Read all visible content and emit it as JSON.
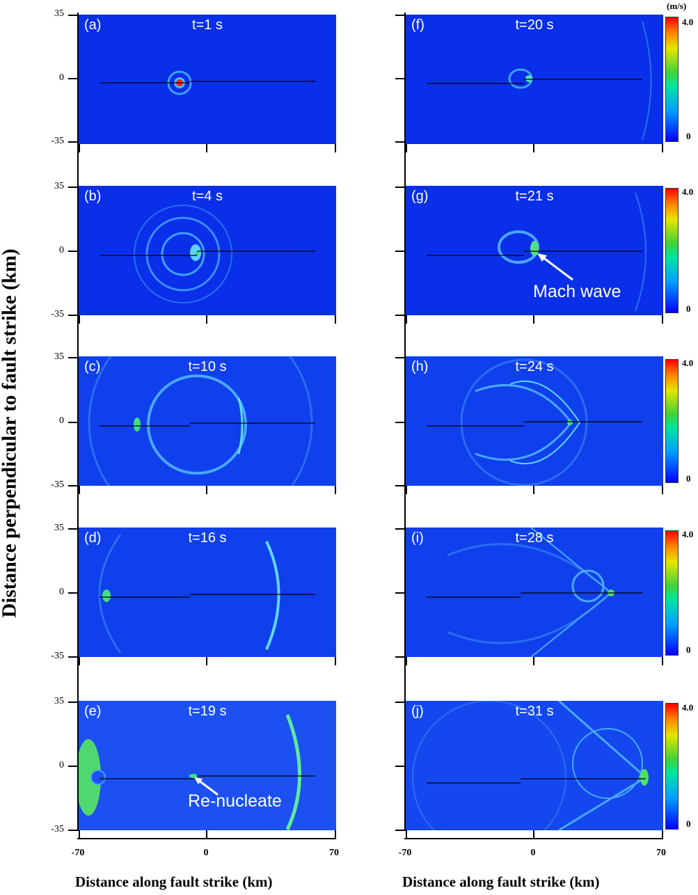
{
  "figure": {
    "y_axis_title": "Distance perpendicular to fault strike (km)",
    "x_axis_title": "Distance along fault strike (km)",
    "y_ticks": [
      "35",
      "0",
      "-35"
    ],
    "x_ticks": [
      "-70",
      "0",
      "70"
    ],
    "colorbar": {
      "unit": "(m/s)",
      "max": "4.0",
      "min": "0"
    },
    "colors": {
      "background": "#0a2fe8",
      "wave": "#3fa0ff",
      "hot": "#ff2020",
      "mid": "#30e060"
    }
  },
  "panels": [
    {
      "label": "(a)",
      "time": "t=1 s"
    },
    {
      "label": "(b)",
      "time": "t=4 s"
    },
    {
      "label": "(c)",
      "time": "t=10 s"
    },
    {
      "label": "(d)",
      "time": "t=16 s"
    },
    {
      "label": "(e)",
      "time": "t=19 s"
    },
    {
      "label": "(f)",
      "time": "t=20 s"
    },
    {
      "label": "(g)",
      "time": "t=21 s"
    },
    {
      "label": "(h)",
      "time": "t=24 s"
    },
    {
      "label": "(i)",
      "time": "t=28 s"
    },
    {
      "label": "(j)",
      "time": "t=31 s"
    }
  ],
  "annotations": {
    "mach_wave": "Mach wave",
    "renucleate": "Re-nucleate"
  }
}
